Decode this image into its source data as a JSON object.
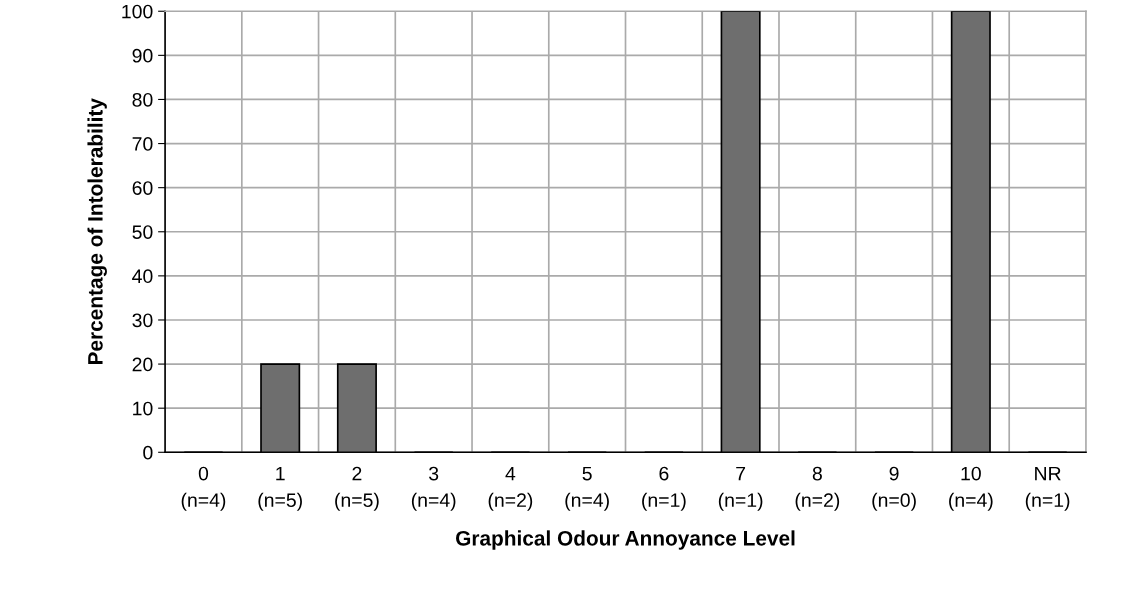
{
  "chart_data": {
    "type": "bar",
    "xlabel": "Graphical Odour Annoyance Level",
    "ylabel": "Percentage of Intolerability",
    "categories": [
      "0\n(n=4)",
      "1\n(n=5)",
      "2\n(n=5)",
      "3\n(n=4)",
      "4\n(n=2)",
      "5\n(n=4)",
      "6\n(n=1)",
      "7\n(n=1)",
      "8\n(n=2)",
      "9\n(n=0)",
      "10\n(n=4)",
      "NR\n(n=1)"
    ],
    "values": [
      0,
      20,
      20,
      0,
      0,
      0,
      0,
      100,
      0,
      0,
      100,
      0
    ],
    "color": "#6e6e6e",
    "ylim": [
      0,
      100
    ],
    "yticks": [
      0,
      10,
      20,
      30,
      40,
      50,
      60,
      70,
      80,
      90,
      100
    ],
    "grid": true
  }
}
